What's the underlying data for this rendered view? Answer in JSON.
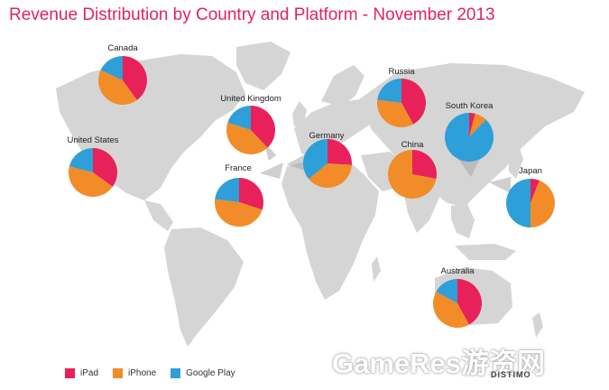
{
  "title": "Revenue Distribution by Country and Platform - November 2013",
  "colors": {
    "ipad": "#e8215a",
    "iphone": "#f28c28",
    "google_play": "#2e9fd8",
    "land": "#d5d5d5"
  },
  "legend": {
    "ipad": "iPad",
    "iphone": "iPhone",
    "google_play": "Google Play"
  },
  "brand": "DISTIMO",
  "watermark": "GameRes游资网",
  "chart_data": {
    "type": "pie",
    "title": "Revenue Distribution by Country and Platform - November 2013",
    "series_names": [
      "iPad",
      "iPhone",
      "Google Play"
    ],
    "pies": [
      {
        "country": "Canada",
        "values": [
          40,
          42,
          18
        ]
      },
      {
        "country": "United Kingdom",
        "values": [
          38,
          42,
          20
        ]
      },
      {
        "country": "United States",
        "values": [
          35,
          44,
          21
        ]
      },
      {
        "country": "France",
        "values": [
          30,
          47,
          23
        ]
      },
      {
        "country": "Germany",
        "values": [
          26,
          38,
          36
        ]
      },
      {
        "country": "Russia",
        "values": [
          42,
          35,
          23
        ]
      },
      {
        "country": "China",
        "values": [
          28,
          72,
          0
        ]
      },
      {
        "country": "South Korea",
        "values": [
          4,
          8,
          88
        ]
      },
      {
        "country": "Japan",
        "values": [
          6,
          44,
          50
        ]
      },
      {
        "country": "Australia",
        "values": [
          42,
          41,
          17
        ]
      }
    ]
  }
}
